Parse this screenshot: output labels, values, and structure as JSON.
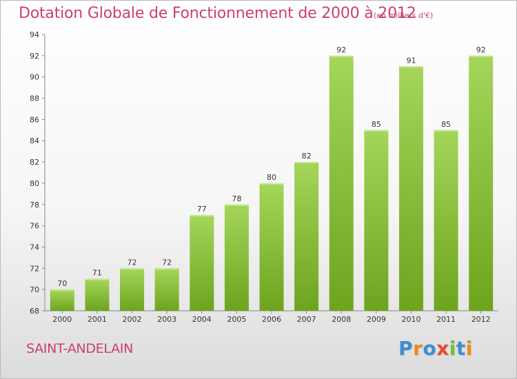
{
  "chart_data": {
    "type": "bar",
    "title": "Dotation Globale de Fonctionnement de 2000 à 2012",
    "subtitle": "(en milliers d'€)",
    "categories": [
      "2000",
      "2001",
      "2002",
      "2003",
      "2004",
      "2005",
      "2006",
      "2007",
      "2008",
      "2009",
      "2010",
      "2011",
      "2012"
    ],
    "values": [
      70,
      71,
      72,
      72,
      77,
      78,
      80,
      82,
      92,
      85,
      91,
      85,
      92
    ],
    "data_labels": [
      "70",
      "71",
      "72",
      "72",
      "77",
      "78",
      "80",
      "82",
      "92",
      "85",
      "91",
      "85",
      "92"
    ],
    "xlabel": "",
    "ylabel": "",
    "ylim": [
      68,
      94
    ],
    "yticks": [
      68,
      70,
      72,
      74,
      76,
      78,
      80,
      82,
      84,
      86,
      88,
      90,
      92,
      94
    ],
    "grid": false,
    "legend": "none",
    "colors": {
      "bar_light": "#a4d65a",
      "bar_dark": "#6da41e",
      "axis": "#888888",
      "text_accent": "#ca3f6e"
    }
  },
  "footer": {
    "commune_name": "SAINT-ANDELAIN",
    "logo_text": "Proxiti",
    "logo_letters": [
      {
        "char": "P",
        "color": "#3a8fd0"
      },
      {
        "char": "r",
        "color": "#f08a1c"
      },
      {
        "char": "o",
        "color": "#3a8fd0"
      },
      {
        "char": "x",
        "color": "#e94a2a"
      },
      {
        "char": "i",
        "color": "#7cbd2a"
      },
      {
        "char": "t",
        "color": "#3a8fd0"
      },
      {
        "char": "i",
        "color": "#f08a1c"
      }
    ]
  }
}
